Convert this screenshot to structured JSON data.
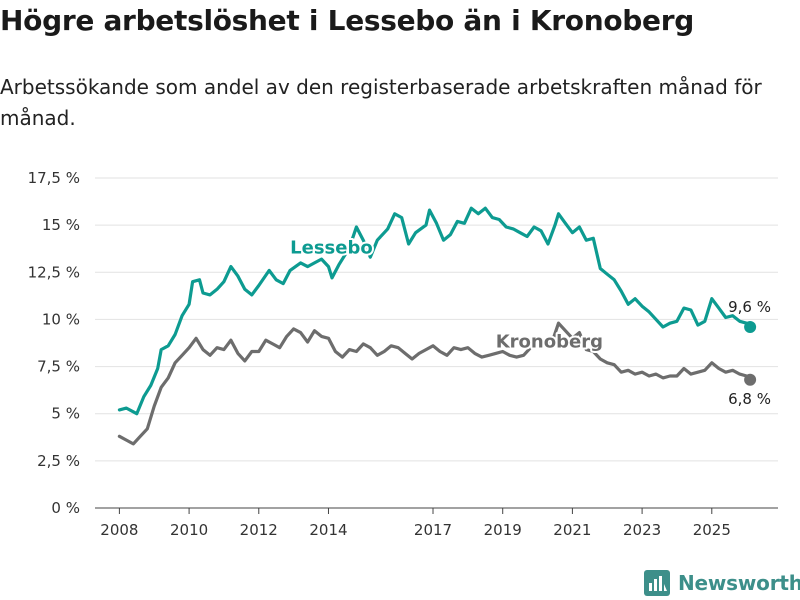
{
  "title": "Högre arbetslöshet i Lessebo än i Kronoberg",
  "subtitle": "Arbetssökande som andel av den registerbaserade arbetskraften månad för månad.",
  "brand": {
    "name": "Newsworthy",
    "icon": "newsworthy-logo-icon",
    "color": "#3d8f8a"
  },
  "chart_data": {
    "type": "line",
    "title": "Högre arbetslöshet i Lessebo än i Kronoberg",
    "xlabel": "",
    "ylabel": "",
    "xlim": [
      2007.3,
      2026.9
    ],
    "ylim": [
      0,
      17.5
    ],
    "yticks": [
      0,
      2.5,
      5,
      7.5,
      10,
      12.5,
      15,
      17.5
    ],
    "ytick_labels": [
      "0 %",
      "2,5 %",
      "5 %",
      "7,5 %",
      "10 %",
      "12,5 %",
      "15 %",
      "17,5 %"
    ],
    "xticks": [
      2008,
      2010,
      2012,
      2014,
      2017,
      2019,
      2021,
      2023,
      2025
    ],
    "xtick_labels": [
      "2008",
      "2010",
      "2012",
      "2014",
      "2017",
      "2019",
      "2021",
      "2023",
      "2025"
    ],
    "grid": true,
    "series": [
      {
        "name": "Lessebo",
        "color": "#0d9b91",
        "end_label": "9,6 %",
        "points": [
          [
            2008.0,
            5.2
          ],
          [
            2008.2,
            5.3
          ],
          [
            2008.4,
            5.1
          ],
          [
            2008.5,
            5.0
          ],
          [
            2008.7,
            5.9
          ],
          [
            2008.9,
            6.5
          ],
          [
            2009.1,
            7.4
          ],
          [
            2009.2,
            8.4
          ],
          [
            2009.4,
            8.6
          ],
          [
            2009.6,
            9.2
          ],
          [
            2009.8,
            10.2
          ],
          [
            2010.0,
            10.8
          ],
          [
            2010.1,
            12.0
          ],
          [
            2010.3,
            12.1
          ],
          [
            2010.4,
            11.4
          ],
          [
            2010.6,
            11.3
          ],
          [
            2010.8,
            11.6
          ],
          [
            2011.0,
            12.0
          ],
          [
            2011.2,
            12.8
          ],
          [
            2011.4,
            12.3
          ],
          [
            2011.6,
            11.6
          ],
          [
            2011.8,
            11.3
          ],
          [
            2012.0,
            11.8
          ],
          [
            2012.3,
            12.6
          ],
          [
            2012.5,
            12.1
          ],
          [
            2012.7,
            11.9
          ],
          [
            2012.9,
            12.6
          ],
          [
            2013.2,
            13.0
          ],
          [
            2013.4,
            12.8
          ],
          [
            2013.6,
            13.0
          ],
          [
            2013.8,
            13.2
          ],
          [
            2014.0,
            12.8
          ],
          [
            2014.1,
            12.2
          ],
          [
            2014.3,
            12.9
          ],
          [
            2014.6,
            13.8
          ],
          [
            2014.8,
            14.9
          ],
          [
            2015.0,
            14.2
          ],
          [
            2015.2,
            13.3
          ],
          [
            2015.4,
            14.2
          ],
          [
            2015.7,
            14.8
          ],
          [
            2015.9,
            15.6
          ],
          [
            2016.1,
            15.4
          ],
          [
            2016.3,
            14.0
          ],
          [
            2016.5,
            14.6
          ],
          [
            2016.8,
            15.0
          ],
          [
            2016.9,
            15.8
          ],
          [
            2017.1,
            15.1
          ],
          [
            2017.3,
            14.2
          ],
          [
            2017.5,
            14.5
          ],
          [
            2017.7,
            15.2
          ],
          [
            2017.9,
            15.1
          ],
          [
            2018.1,
            15.9
          ],
          [
            2018.3,
            15.6
          ],
          [
            2018.5,
            15.9
          ],
          [
            2018.7,
            15.4
          ],
          [
            2018.9,
            15.3
          ],
          [
            2019.1,
            14.9
          ],
          [
            2019.3,
            14.8
          ],
          [
            2019.5,
            14.6
          ],
          [
            2019.7,
            14.4
          ],
          [
            2019.9,
            14.9
          ],
          [
            2020.1,
            14.7
          ],
          [
            2020.3,
            14.0
          ],
          [
            2020.5,
            15.0
          ],
          [
            2020.6,
            15.6
          ],
          [
            2020.8,
            15.1
          ],
          [
            2021.0,
            14.6
          ],
          [
            2021.2,
            14.9
          ],
          [
            2021.4,
            14.2
          ],
          [
            2021.6,
            14.3
          ],
          [
            2021.8,
            12.7
          ],
          [
            2022.0,
            12.4
          ],
          [
            2022.2,
            12.1
          ],
          [
            2022.4,
            11.5
          ],
          [
            2022.6,
            10.8
          ],
          [
            2022.8,
            11.1
          ],
          [
            2023.0,
            10.7
          ],
          [
            2023.2,
            10.4
          ],
          [
            2023.4,
            10.0
          ],
          [
            2023.6,
            9.6
          ],
          [
            2023.8,
            9.8
          ],
          [
            2024.0,
            9.9
          ],
          [
            2024.2,
            10.6
          ],
          [
            2024.4,
            10.5
          ],
          [
            2024.6,
            9.7
          ],
          [
            2024.8,
            9.9
          ],
          [
            2025.0,
            11.1
          ],
          [
            2025.2,
            10.6
          ],
          [
            2025.4,
            10.1
          ],
          [
            2025.6,
            10.2
          ],
          [
            2025.8,
            9.9
          ],
          [
            2026.0,
            9.8
          ],
          [
            2026.1,
            9.6
          ]
        ]
      },
      {
        "name": "Kronoberg",
        "color": "#6d6d6d",
        "end_label": "6,8 %",
        "points": [
          [
            2008.0,
            3.8
          ],
          [
            2008.2,
            3.6
          ],
          [
            2008.4,
            3.4
          ],
          [
            2008.6,
            3.8
          ],
          [
            2008.8,
            4.2
          ],
          [
            2009.0,
            5.4
          ],
          [
            2009.2,
            6.4
          ],
          [
            2009.4,
            6.9
          ],
          [
            2009.6,
            7.7
          ],
          [
            2009.8,
            8.1
          ],
          [
            2010.0,
            8.5
          ],
          [
            2010.2,
            9.0
          ],
          [
            2010.4,
            8.4
          ],
          [
            2010.6,
            8.1
          ],
          [
            2010.8,
            8.5
          ],
          [
            2011.0,
            8.4
          ],
          [
            2011.2,
            8.9
          ],
          [
            2011.4,
            8.2
          ],
          [
            2011.6,
            7.8
          ],
          [
            2011.8,
            8.3
          ],
          [
            2012.0,
            8.3
          ],
          [
            2012.2,
            8.9
          ],
          [
            2012.4,
            8.7
          ],
          [
            2012.6,
            8.5
          ],
          [
            2012.8,
            9.1
          ],
          [
            2013.0,
            9.5
          ],
          [
            2013.2,
            9.3
          ],
          [
            2013.4,
            8.8
          ],
          [
            2013.6,
            9.4
          ],
          [
            2013.8,
            9.1
          ],
          [
            2014.0,
            9.0
          ],
          [
            2014.2,
            8.3
          ],
          [
            2014.4,
            8.0
          ],
          [
            2014.6,
            8.4
          ],
          [
            2014.8,
            8.3
          ],
          [
            2015.0,
            8.7
          ],
          [
            2015.2,
            8.5
          ],
          [
            2015.4,
            8.1
          ],
          [
            2015.6,
            8.3
          ],
          [
            2015.8,
            8.6
          ],
          [
            2016.0,
            8.5
          ],
          [
            2016.2,
            8.2
          ],
          [
            2016.4,
            7.9
          ],
          [
            2016.6,
            8.2
          ],
          [
            2016.8,
            8.4
          ],
          [
            2017.0,
            8.6
          ],
          [
            2017.2,
            8.3
          ],
          [
            2017.4,
            8.1
          ],
          [
            2017.6,
            8.5
          ],
          [
            2017.8,
            8.4
          ],
          [
            2018.0,
            8.5
          ],
          [
            2018.2,
            8.2
          ],
          [
            2018.4,
            8.0
          ],
          [
            2018.6,
            8.1
          ],
          [
            2018.8,
            8.2
          ],
          [
            2019.0,
            8.3
          ],
          [
            2019.2,
            8.1
          ],
          [
            2019.4,
            8.0
          ],
          [
            2019.6,
            8.1
          ],
          [
            2019.8,
            8.5
          ],
          [
            2020.0,
            8.7
          ],
          [
            2020.2,
            8.8
          ],
          [
            2020.4,
            8.7
          ],
          [
            2020.6,
            9.8
          ],
          [
            2020.8,
            9.4
          ],
          [
            2021.0,
            9.0
          ],
          [
            2021.2,
            9.3
          ],
          [
            2021.4,
            8.4
          ],
          [
            2021.6,
            8.3
          ],
          [
            2021.8,
            7.9
          ],
          [
            2022.0,
            7.7
          ],
          [
            2022.2,
            7.6
          ],
          [
            2022.4,
            7.2
          ],
          [
            2022.6,
            7.3
          ],
          [
            2022.8,
            7.1
          ],
          [
            2023.0,
            7.2
          ],
          [
            2023.2,
            7.0
          ],
          [
            2023.4,
            7.1
          ],
          [
            2023.6,
            6.9
          ],
          [
            2023.8,
            7.0
          ],
          [
            2024.0,
            7.0
          ],
          [
            2024.2,
            7.4
          ],
          [
            2024.4,
            7.1
          ],
          [
            2024.6,
            7.2
          ],
          [
            2024.8,
            7.3
          ],
          [
            2025.0,
            7.7
          ],
          [
            2025.2,
            7.4
          ],
          [
            2025.4,
            7.2
          ],
          [
            2025.6,
            7.3
          ],
          [
            2025.8,
            7.1
          ],
          [
            2026.0,
            7.0
          ],
          [
            2026.1,
            6.8
          ]
        ]
      }
    ]
  }
}
